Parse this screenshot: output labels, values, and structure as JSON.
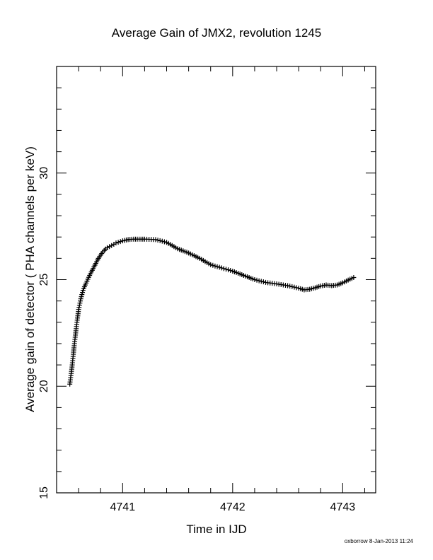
{
  "chart_data": {
    "type": "scatter",
    "title": "Average Gain of JMX2, revolution 1245",
    "xlabel": "Time in IJD",
    "ylabel": "Average gain of detector ( PHA channels per keV)",
    "xlim": [
      4740.4,
      4743.3
    ],
    "ylim": [
      15,
      35
    ],
    "xticks_major": [
      4741,
      4742,
      4743
    ],
    "xticks_major_labels": [
      "4741",
      "4742",
      "4743"
    ],
    "yticks_major": [
      15,
      20,
      25,
      30
    ],
    "yticks_major_labels": [
      "15",
      "20",
      "25",
      "30"
    ],
    "marker": "plus",
    "grid": false,
    "series": [
      {
        "x": [
          4740.52,
          4740.54,
          4740.56,
          4740.58,
          4740.6,
          4740.62,
          4740.64,
          4740.66,
          4740.7,
          4740.74,
          4740.78,
          4740.82,
          4740.86,
          4740.9,
          4740.94,
          4741.0,
          4741.05,
          4741.1,
          4741.15,
          4741.2,
          4741.3,
          4741.4,
          4741.5,
          4741.6,
          4741.7,
          4741.8,
          4741.9,
          4742.0,
          4742.1,
          4742.2,
          4742.3,
          4742.4,
          4742.5,
          4742.6,
          4742.65,
          4742.7,
          4742.75,
          4742.8,
          4742.85,
          4742.9,
          4742.95,
          4743.0,
          4743.05,
          4743.1
        ],
        "y": [
          20.1,
          20.9,
          21.9,
          22.8,
          23.6,
          24.1,
          24.5,
          24.75,
          25.2,
          25.6,
          26.0,
          26.3,
          26.5,
          26.6,
          26.72,
          26.82,
          26.88,
          26.9,
          26.9,
          26.9,
          26.88,
          26.75,
          26.45,
          26.25,
          26.0,
          25.7,
          25.55,
          25.4,
          25.2,
          25.0,
          24.87,
          24.8,
          24.72,
          24.6,
          24.52,
          24.55,
          24.62,
          24.7,
          24.75,
          24.72,
          24.75,
          24.85,
          24.98,
          25.1
        ]
      }
    ]
  },
  "credit": "oxborrow  8-Jan-2013 11:24"
}
